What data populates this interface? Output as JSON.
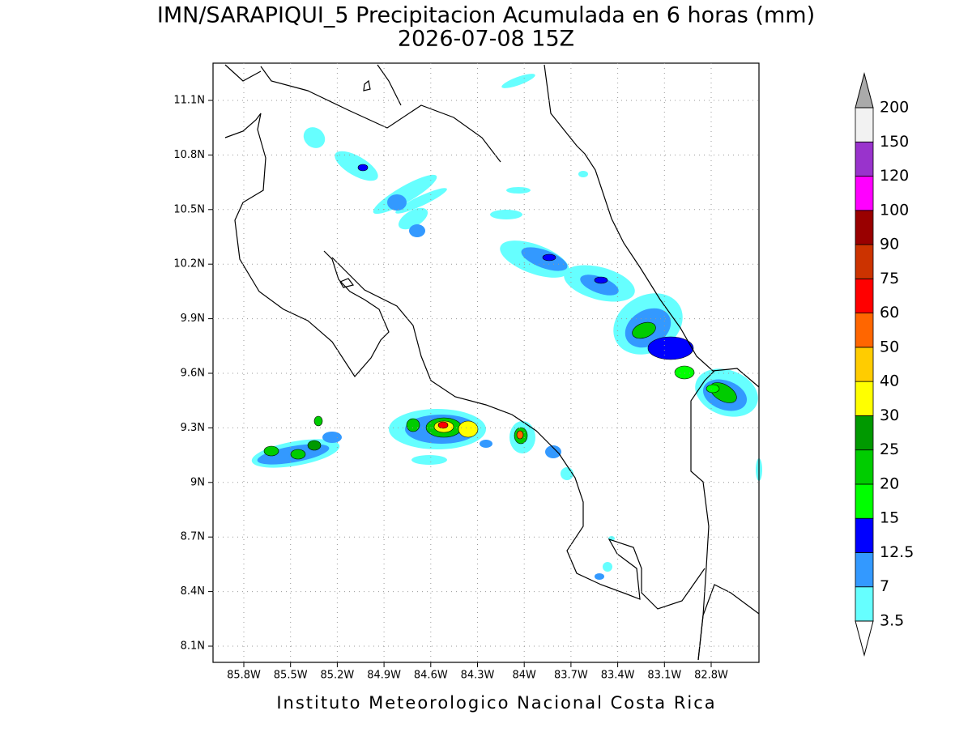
{
  "title": "IMN/SARAPIQUI_5 Precipitacion Acumulada en 6 horas (mm)",
  "subtitle": "2026-07-08 15Z",
  "lon_ticks": [
    "85.8W",
    "85.5W",
    "85.2W",
    "84.9W",
    "84.6W",
    "84.3W",
    "84W",
    "83.7W",
    "83.4W",
    "83.1W",
    "82.8W"
  ],
  "lat_ticks": [
    "11.1N",
    "10.8N",
    "10.5N",
    "10.2N",
    "9.9N",
    "9.6N",
    "9.3N",
    "9N",
    "8.7N",
    "8.4N",
    "8.1N"
  ],
  "colorbar": {
    "levels": [
      3.5,
      7,
      12.5,
      15,
      20,
      25,
      30,
      40,
      50,
      60,
      75,
      90,
      100,
      120,
      150,
      200
    ],
    "colors": [
      "#66ffff",
      "#3399ff",
      "#0000ff",
      "#00ff00",
      "#00cc00",
      "#009900",
      "#ffff00",
      "#ffcc00",
      "#ff6600",
      "#ff0000",
      "#cc3300",
      "#990000",
      "#ff00ff",
      "#9933cc",
      "#f2f2f2"
    ],
    "under_color": "#ffffff",
    "over_color": "#aaaaaa"
  },
  "footer": "Instituto Meteorologico Nacional Costa Rica"
}
